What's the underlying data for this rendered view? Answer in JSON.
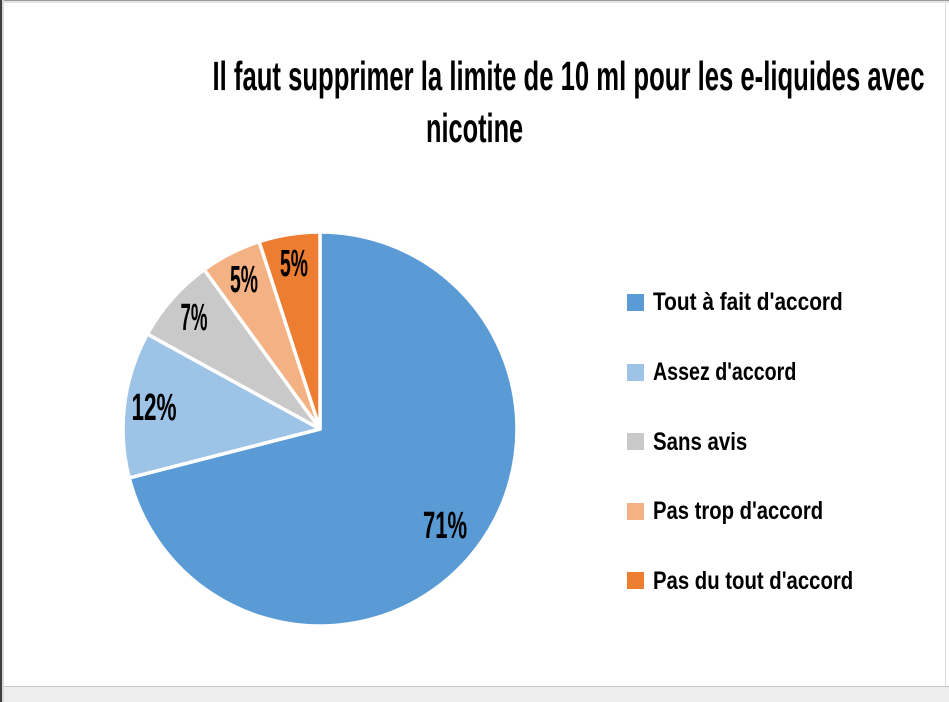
{
  "chart_data": {
    "type": "pie",
    "title": "Il faut supprimer la limite de 10 ml pour les e-liquides avec nicotine",
    "title_lines": [
      "Il faut supprimer la limite de 10 ml pour les e-liquides avec",
      "nicotine"
    ],
    "slices": [
      {
        "label": "Tout à fait d'accord",
        "value": 71,
        "display": "71%",
        "color": "#5B9BD5"
      },
      {
        "label": "Assez d'accord",
        "value": 12,
        "display": "12%",
        "color": "#9DC3E6"
      },
      {
        "label": "Sans avis",
        "value": 7,
        "display": "7%",
        "color": "#C9C9C9"
      },
      {
        "label": "Pas trop d'accord",
        "value": 5,
        "display": "5%",
        "color": "#F4B183"
      },
      {
        "label": "Pas du tout d'accord",
        "value": 5,
        "display": "5%",
        "color": "#ED7D31"
      }
    ],
    "start_angle_deg": 0,
    "direction": "clockwise",
    "slice_border_color": "#ffffff",
    "data_labels": "percent",
    "legend_position": "right",
    "title_color": "#000000",
    "label_color": "#000000"
  }
}
